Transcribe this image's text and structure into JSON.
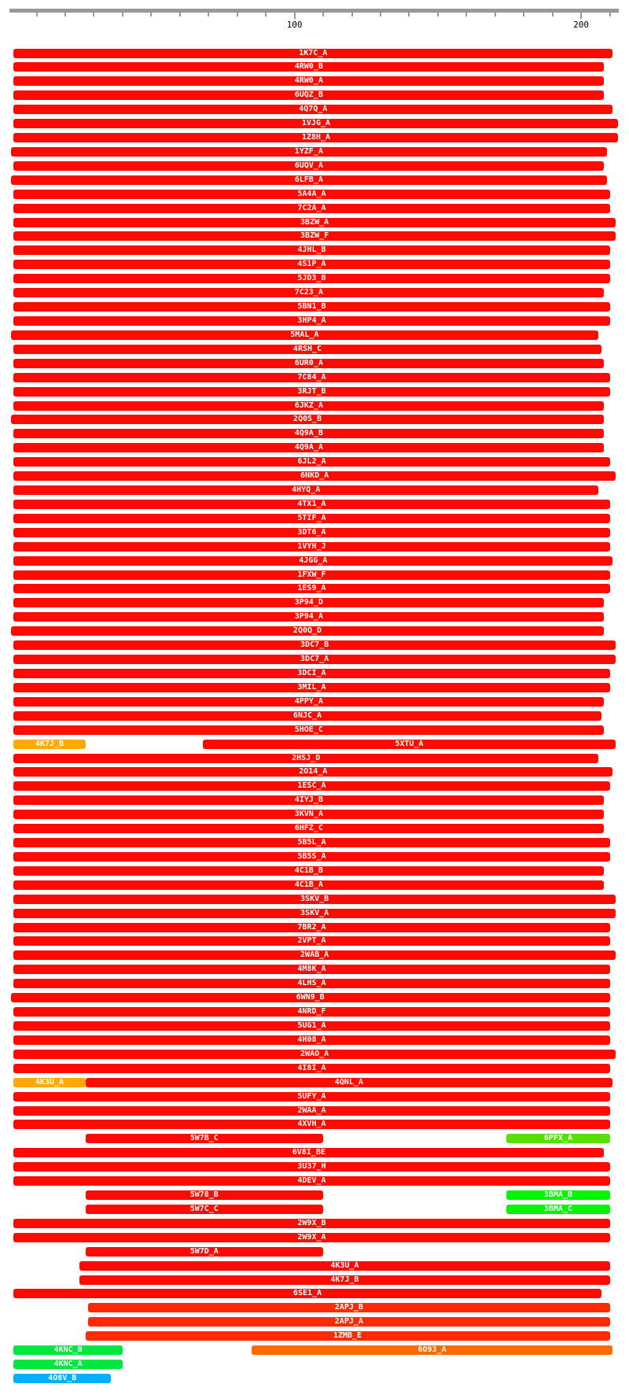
{
  "ruler": {
    "min": 0,
    "max": 213,
    "tick_step": 10,
    "labels": [
      "100",
      "200"
    ],
    "label_values": [
      100,
      200
    ]
  },
  "colors": {
    "red": "#ff0a00",
    "orange": "#ffaa00",
    "red_orange": "#ff2a00",
    "dark_orange": "#ff6a00",
    "lime": "#55e000",
    "green": "#00f500",
    "green2": "#00e840",
    "blue": "#00b0ff"
  },
  "rows": [
    [
      [
        "1K7C_A",
        2,
        211,
        "red"
      ]
    ],
    [
      [
        "4RW0_B",
        2,
        208,
        "red"
      ]
    ],
    [
      [
        "4RW0_A",
        2,
        208,
        "red"
      ]
    ],
    [
      [
        "6UQZ_B",
        2,
        208,
        "red"
      ]
    ],
    [
      [
        "4Q7Q_A",
        2,
        211,
        "red"
      ]
    ],
    [
      [
        "1VJG_A",
        2,
        213,
        "red"
      ]
    ],
    [
      [
        "1Z8H_A",
        2,
        213,
        "red"
      ]
    ],
    [
      [
        "1YZF_A",
        1,
        209,
        "red"
      ]
    ],
    [
      [
        "6UQV_A",
        2,
        208,
        "red"
      ]
    ],
    [
      [
        "6LFB_A",
        1,
        209,
        "red"
      ]
    ],
    [
      [
        "5A4A_A",
        2,
        210,
        "red"
      ]
    ],
    [
      [
        "7C2A_A",
        2,
        210,
        "red"
      ]
    ],
    [
      [
        "3BZW_A",
        2,
        212,
        "red"
      ]
    ],
    [
      [
        "3BZW_F",
        2,
        212,
        "red"
      ]
    ],
    [
      [
        "4JHL_B",
        2,
        210,
        "red"
      ]
    ],
    [
      [
        "4S1P_A",
        2,
        210,
        "red"
      ]
    ],
    [
      [
        "5JD3_B",
        2,
        210,
        "red"
      ]
    ],
    [
      [
        "7C23_A",
        2,
        208,
        "red"
      ]
    ],
    [
      [
        "5BN1_B",
        2,
        210,
        "red"
      ]
    ],
    [
      [
        "3HP4_A",
        2,
        210,
        "red"
      ]
    ],
    [
      [
        "5MAL_A",
        1,
        206,
        "red"
      ]
    ],
    [
      [
        "4RSH_C",
        2,
        207,
        "red"
      ]
    ],
    [
      [
        "6UR0_A",
        2,
        208,
        "red"
      ]
    ],
    [
      [
        "7C84_A",
        2,
        210,
        "red"
      ]
    ],
    [
      [
        "3RJT_B",
        2,
        210,
        "red"
      ]
    ],
    [
      [
        "6JKZ_A",
        2,
        208,
        "red"
      ]
    ],
    [
      [
        "2Q0S_B",
        1,
        208,
        "red"
      ]
    ],
    [
      [
        "4Q9A_B",
        2,
        208,
        "red"
      ]
    ],
    [
      [
        "4Q9A_A",
        2,
        208,
        "red"
      ]
    ],
    [
      [
        "6JL2_A",
        2,
        210,
        "red"
      ]
    ],
    [
      [
        "6NKD_A",
        2,
        212,
        "red"
      ]
    ],
    [
      [
        "4HYQ_A",
        2,
        206,
        "red"
      ]
    ],
    [
      [
        "4TX1_A",
        2,
        210,
        "red"
      ]
    ],
    [
      [
        "5TIF_A",
        2,
        210,
        "red"
      ]
    ],
    [
      [
        "3DT6_A",
        2,
        210,
        "red"
      ]
    ],
    [
      [
        "1VYH_J",
        2,
        210,
        "red"
      ]
    ],
    [
      [
        "4JGG_A",
        2,
        211,
        "red"
      ]
    ],
    [
      [
        "1FXW_F",
        2,
        210,
        "red"
      ]
    ],
    [
      [
        "1ES9_A",
        2,
        210,
        "red"
      ]
    ],
    [
      [
        "3P94_D",
        2,
        208,
        "red"
      ]
    ],
    [
      [
        "3P94_A",
        2,
        208,
        "red"
      ]
    ],
    [
      [
        "2Q0Q_D",
        1,
        208,
        "red"
      ]
    ],
    [
      [
        "3DC7_B",
        2,
        212,
        "red"
      ]
    ],
    [
      [
        "3DC7_A",
        2,
        212,
        "red"
      ]
    ],
    [
      [
        "3DCI_A",
        2,
        210,
        "red"
      ]
    ],
    [
      [
        "3MIL_A",
        2,
        210,
        "red"
      ]
    ],
    [
      [
        "4PPY_A",
        2,
        208,
        "red"
      ]
    ],
    [
      [
        "6NJC_A",
        2,
        207,
        "red"
      ]
    ],
    [
      [
        "5HOE_C",
        2,
        208,
        "red"
      ]
    ],
    [
      [
        "4K7J_B",
        2,
        27,
        "orange"
      ],
      [
        "5XTU_A",
        68,
        212,
        "red"
      ]
    ],
    [
      [
        "2HSJ_D",
        2,
        206,
        "red"
      ]
    ],
    [
      [
        "2O14_A",
        2,
        211,
        "red"
      ]
    ],
    [
      [
        "1ESC_A",
        2,
        210,
        "red"
      ]
    ],
    [
      [
        "4IYJ_B",
        2,
        208,
        "red"
      ]
    ],
    [
      [
        "3KVN_A",
        2,
        208,
        "red"
      ]
    ],
    [
      [
        "6HFZ_C",
        2,
        208,
        "red"
      ]
    ],
    [
      [
        "5B5L_A",
        2,
        210,
        "red"
      ]
    ],
    [
      [
        "5B5S_A",
        2,
        210,
        "red"
      ]
    ],
    [
      [
        "4C1B_B",
        2,
        208,
        "red"
      ]
    ],
    [
      [
        "4C1B_A",
        2,
        208,
        "red"
      ]
    ],
    [
      [
        "3SKV_B",
        2,
        212,
        "red"
      ]
    ],
    [
      [
        "3SKV_A",
        2,
        212,
        "red"
      ]
    ],
    [
      [
        "7BR2_A",
        2,
        210,
        "red"
      ]
    ],
    [
      [
        "2VPT_A",
        2,
        210,
        "red"
      ]
    ],
    [
      [
        "2WAB_A",
        2,
        212,
        "red"
      ]
    ],
    [
      [
        "4M8K_A",
        2,
        210,
        "red"
      ]
    ],
    [
      [
        "4LHS_A",
        2,
        210,
        "red"
      ]
    ],
    [
      [
        "6WN9_B",
        1,
        210,
        "red"
      ]
    ],
    [
      [
        "4NRD_F",
        2,
        210,
        "red"
      ]
    ],
    [
      [
        "5UG1_A",
        2,
        210,
        "red"
      ]
    ],
    [
      [
        "4H08_A",
        2,
        210,
        "red"
      ]
    ],
    [
      [
        "2WAO_A",
        2,
        212,
        "red"
      ]
    ],
    [
      [
        "4I8I_A",
        2,
        210,
        "red"
      ]
    ],
    [
      [
        "4K3U_A",
        2,
        27,
        "orange"
      ],
      [
        "4QNL_A",
        27,
        211,
        "red"
      ]
    ],
    [
      [
        "5UFY_A",
        2,
        210,
        "red"
      ]
    ],
    [
      [
        "2WAA_A",
        2,
        210,
        "red"
      ]
    ],
    [
      [
        "4XVH_A",
        2,
        210,
        "red"
      ]
    ],
    [
      [
        "5W7B_C",
        27,
        110,
        "red"
      ],
      [
        "6PFX_A",
        174,
        210,
        "lime"
      ]
    ],
    [
      [
        "6V8I_BE",
        2,
        208,
        "red"
      ]
    ],
    [
      [
        "3U37_H",
        2,
        210,
        "red"
      ]
    ],
    [
      [
        "4DEV_A",
        2,
        210,
        "red"
      ]
    ],
    [
      [
        "5W78_B",
        27,
        110,
        "red"
      ],
      [
        "3BMA_B",
        174,
        210,
        "green"
      ]
    ],
    [
      [
        "5W7C_C",
        27,
        110,
        "red"
      ],
      [
        "3BMA_C",
        174,
        210,
        "green"
      ]
    ],
    [
      [
        "2W9X_B",
        2,
        210,
        "red"
      ]
    ],
    [
      [
        "2W9X_A",
        2,
        210,
        "red"
      ]
    ],
    [
      [
        "5W7D_A",
        27,
        110,
        "red"
      ]
    ],
    [
      [
        "4K3U_A",
        25,
        210,
        "red"
      ]
    ],
    [
      [
        "4K7J_B",
        25,
        210,
        "red"
      ]
    ],
    [
      [
        "6SE1_A",
        2,
        207,
        "red"
      ]
    ],
    [
      [
        "2APJ_B",
        28,
        210,
        "red_orange"
      ]
    ],
    [
      [
        "2APJ_A",
        28,
        210,
        "red_orange"
      ]
    ],
    [
      [
        "1ZMB_E",
        27,
        210,
        "red_orange"
      ]
    ],
    [
      [
        "4KNC_B",
        2,
        40,
        "green2"
      ],
      [
        "6O93_A",
        85,
        211,
        "dark_orange"
      ]
    ],
    [
      [
        "4KNC_A",
        2,
        40,
        "green2"
      ]
    ],
    [
      [
        "4O8V_B",
        2,
        36,
        "blue"
      ]
    ]
  ]
}
